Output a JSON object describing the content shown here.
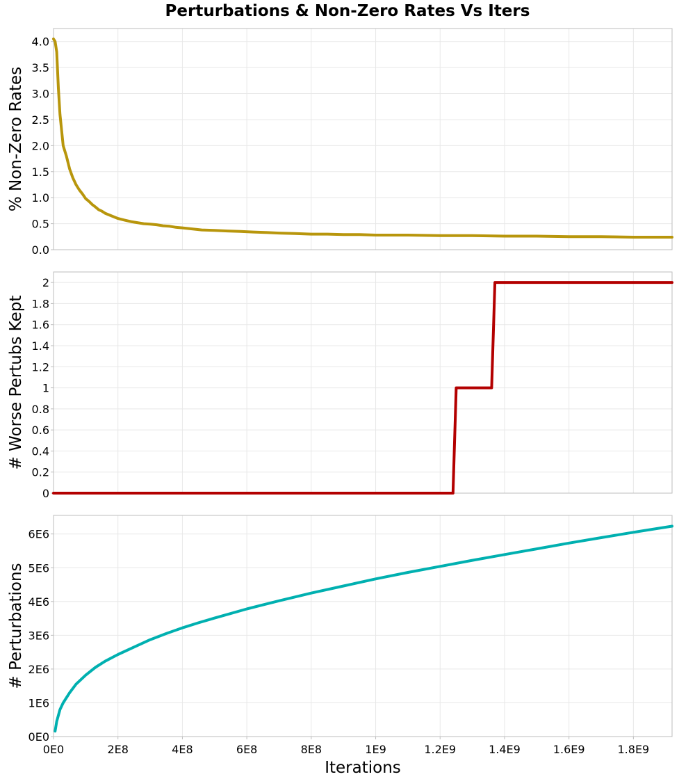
{
  "title": "Perturbations & Non-Zero Rates Vs Iters",
  "chart_data": [
    {
      "type": "line",
      "ylabel": "% Non-Zero Rates",
      "xlim": [
        0,
        1920000000
      ],
      "ylim": [
        0,
        4.25
      ],
      "yticks": [
        0.0,
        0.5,
        1.0,
        1.5,
        2.0,
        2.5,
        3.0,
        3.5,
        4.0
      ],
      "ytick_labels": [
        "0.0",
        "0.5",
        "1.0",
        "1.5",
        "2.0",
        "2.5",
        "3.0",
        "3.5",
        "4.0"
      ],
      "grid": true,
      "series": [
        {
          "color": "#b8960c",
          "x": [
            0,
            5000000,
            10000000,
            15000000,
            20000000,
            25000000,
            30000000,
            40000000,
            50000000,
            60000000,
            70000000,
            80000000,
            90000000,
            100000000,
            110000000,
            120000000,
            130000000,
            140000000,
            150000000,
            160000000,
            180000000,
            200000000,
            220000000,
            240000000,
            260000000,
            280000000,
            300000000,
            320000000,
            340000000,
            360000000,
            380000000,
            400000000,
            430000000,
            460000000,
            500000000,
            540000000,
            580000000,
            620000000,
            660000000,
            700000000,
            750000000,
            800000000,
            850000000,
            900000000,
            950000000,
            1000000000,
            1100000000,
            1200000000,
            1300000000,
            1400000000,
            1500000000,
            1600000000,
            1700000000,
            1800000000,
            1920000000
          ],
          "y": [
            4.05,
            4.0,
            3.8,
            3.1,
            2.6,
            2.3,
            2.0,
            1.8,
            1.55,
            1.38,
            1.25,
            1.15,
            1.07,
            0.98,
            0.93,
            0.87,
            0.82,
            0.77,
            0.74,
            0.7,
            0.65,
            0.6,
            0.57,
            0.54,
            0.52,
            0.5,
            0.49,
            0.48,
            0.46,
            0.45,
            0.43,
            0.42,
            0.4,
            0.38,
            0.37,
            0.36,
            0.35,
            0.34,
            0.33,
            0.32,
            0.31,
            0.3,
            0.3,
            0.29,
            0.29,
            0.28,
            0.28,
            0.27,
            0.27,
            0.26,
            0.26,
            0.25,
            0.25,
            0.24,
            0.24
          ]
        }
      ]
    },
    {
      "type": "line",
      "ylabel": "# Worse Pertubs Kept",
      "xlim": [
        0,
        1920000000
      ],
      "ylim": [
        0,
        2.1
      ],
      "yticks": [
        0,
        0.2,
        0.4,
        0.6,
        0.8,
        1.0,
        1.2,
        1.4,
        1.6,
        1.8,
        2.0
      ],
      "ytick_labels": [
        "0",
        "0.2",
        "0.4",
        "0.6",
        "0.8",
        "1",
        "1.2",
        "1.4",
        "1.6",
        "1.8",
        "2"
      ],
      "grid": true,
      "series": [
        {
          "color": "#b30000",
          "x": [
            0,
            1240000000,
            1250000000,
            1360000000,
            1370000000,
            1920000000
          ],
          "y": [
            0,
            0,
            1,
            1,
            2,
            2
          ]
        }
      ]
    },
    {
      "type": "line",
      "ylabel": "# Perturbations",
      "xlabel": "Iterations",
      "xlim": [
        0,
        1920000000
      ],
      "ylim": [
        0,
        6550000
      ],
      "yticks": [
        0,
        1000000,
        2000000,
        3000000,
        4000000,
        5000000,
        6000000
      ],
      "ytick_labels": [
        "0E0",
        "1E6",
        "2E6",
        "3E6",
        "4E6",
        "5E6",
        "6E6"
      ],
      "xticks": [
        0,
        200000000,
        400000000,
        600000000,
        800000000,
        1000000000,
        1200000000,
        1400000000,
        1600000000,
        1800000000
      ],
      "xtick_labels": [
        "0E0",
        "2E8",
        "4E8",
        "6E8",
        "8E8",
        "1E9",
        "1.2E9",
        "1.4E9",
        "1.6E9",
        "1.8E9"
      ],
      "grid": true,
      "series": [
        {
          "color": "#00b0b0",
          "x": [
            5000000,
            10000000,
            20000000,
            30000000,
            50000000,
            70000000,
            100000000,
            130000000,
            160000000,
            200000000,
            250000000,
            300000000,
            350000000,
            400000000,
            450000000,
            500000000,
            600000000,
            700000000,
            800000000,
            900000000,
            1000000000,
            1100000000,
            1200000000,
            1300000000,
            1400000000,
            1500000000,
            1600000000,
            1700000000,
            1800000000,
            1920000000
          ],
          "y": [
            160000,
            450000,
            800000,
            1000000,
            1300000,
            1550000,
            1820000,
            2050000,
            2230000,
            2430000,
            2650000,
            2870000,
            3050000,
            3220000,
            3370000,
            3510000,
            3780000,
            4020000,
            4250000,
            4460000,
            4670000,
            4860000,
            5040000,
            5220000,
            5390000,
            5560000,
            5730000,
            5890000,
            6050000,
            6230000
          ]
        }
      ]
    }
  ]
}
